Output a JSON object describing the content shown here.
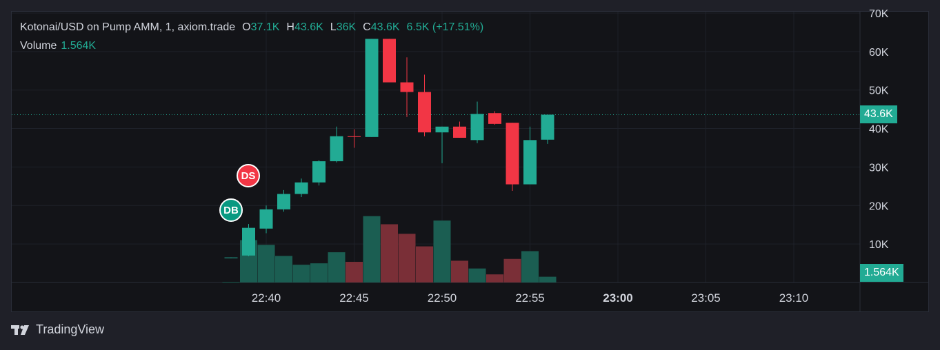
{
  "legend": {
    "symbol": "Kotonai/USD on Pump AMM, 1, axiom.trade",
    "o_label": "O",
    "o_value": "37.1K",
    "h_label": "H",
    "h_value": "43.6K",
    "l_label": "L",
    "l_value": "36K",
    "c_label": "C",
    "c_value": "43.6K",
    "change": "6.5K (+17.51%)"
  },
  "volume_legend": {
    "label": "Volume",
    "value": "1.564K"
  },
  "price_tag": "43.6K",
  "volume_tag": "1.564K",
  "markers": [
    {
      "label": "DS",
      "color": "#f23645"
    },
    {
      "label": "DB",
      "color": "#089981"
    }
  ],
  "footer": {
    "brand": "TradingView"
  },
  "colors": {
    "up": "#22ab94",
    "down": "#f23645",
    "up_vol": "#1b5e52",
    "down_vol": "#7a2f37"
  },
  "chart_data": {
    "type": "candlestick",
    "x_ticks": [
      "22:40",
      "22:45",
      "22:50",
      "22:55",
      "23:00",
      "23:05",
      "23:10"
    ],
    "y_ticks": [
      "10K",
      "20K",
      "30K",
      "40K",
      "50K",
      "60K",
      "70K"
    ],
    "ylim": [
      0,
      70000
    ],
    "last_price": 43600,
    "candles": [
      {
        "t": "22:37",
        "o": 6400,
        "h": 6500,
        "l": 6300,
        "c": 6500,
        "v": 100
      },
      {
        "t": "22:38",
        "o": 7000,
        "h": 15200,
        "l": 6800,
        "c": 14200,
        "v": 11500
      },
      {
        "t": "22:39",
        "o": 14000,
        "h": 20000,
        "l": 12800,
        "c": 19000,
        "v": 10200
      },
      {
        "t": "22:40",
        "o": 19000,
        "h": 24000,
        "l": 18400,
        "c": 23000,
        "v": 7200
      },
      {
        "t": "22:41",
        "o": 23000,
        "h": 27000,
        "l": 22200,
        "c": 26000,
        "v": 4800
      },
      {
        "t": "22:42",
        "o": 26000,
        "h": 31800,
        "l": 25200,
        "c": 31500,
        "v": 5200
      },
      {
        "t": "22:43",
        "o": 31500,
        "h": 40500,
        "l": 31200,
        "c": 38000,
        "v": 8200
      },
      {
        "t": "22:44",
        "o": 38000,
        "h": 39800,
        "l": 35000,
        "c": 37800,
        "v": 5600
      },
      {
        "t": "22:45",
        "o": 37800,
        "h": 63300,
        "l": 37800,
        "c": 63300,
        "v": 18000
      },
      {
        "t": "22:46",
        "o": 63300,
        "h": 63300,
        "l": 52000,
        "c": 52000,
        "v": 15800
      },
      {
        "t": "22:47",
        "o": 52000,
        "h": 58500,
        "l": 43000,
        "c": 49500,
        "v": 13200
      },
      {
        "t": "22:48",
        "o": 49500,
        "h": 54000,
        "l": 38000,
        "c": 39000,
        "v": 9800
      },
      {
        "t": "22:49",
        "o": 39000,
        "h": 40500,
        "l": 31000,
        "c": 40500,
        "v": 16800
      },
      {
        "t": "22:50",
        "o": 40500,
        "h": 41800,
        "l": 37600,
        "c": 37600,
        "v": 5900
      },
      {
        "t": "22:51",
        "o": 37000,
        "h": 47000,
        "l": 36200,
        "c": 43800,
        "v": 3800
      },
      {
        "t": "22:52",
        "o": 44000,
        "h": 44500,
        "l": 41000,
        "c": 41200,
        "v": 2200
      },
      {
        "t": "22:53",
        "o": 41500,
        "h": 41500,
        "l": 23800,
        "c": 25500,
        "v": 6400
      },
      {
        "t": "22:54",
        "o": 25500,
        "h": 40500,
        "l": 25500,
        "c": 37000,
        "v": 8500
      },
      {
        "t": "22:55",
        "o": 37100,
        "h": 43600,
        "l": 36000,
        "c": 43600,
        "v": 1564
      }
    ]
  }
}
